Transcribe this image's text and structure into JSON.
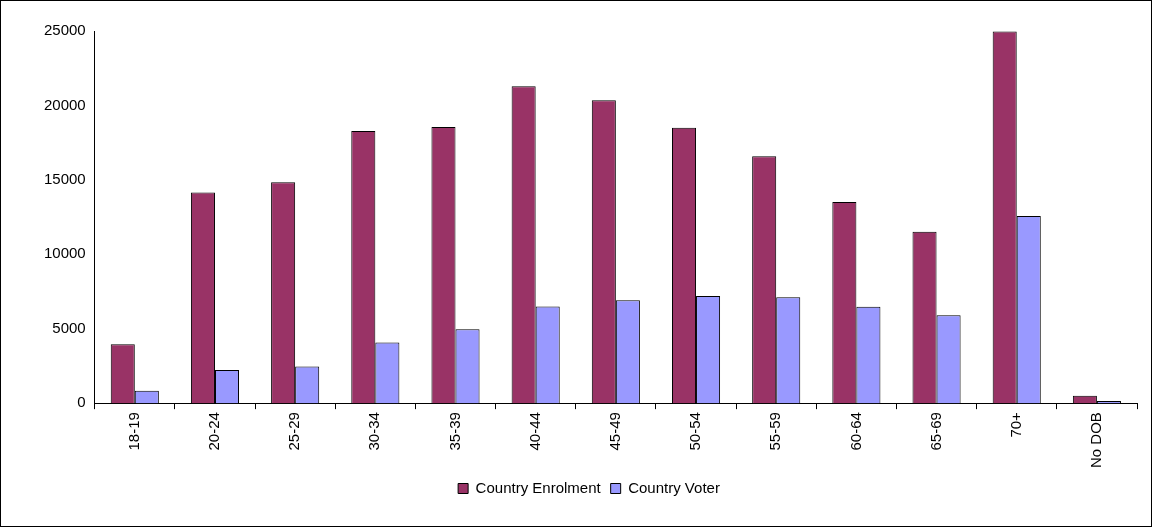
{
  "chart_data": {
    "type": "bar",
    "categories": [
      "18-19",
      "20-24",
      "25-29",
      "30-34",
      "35-39",
      "40-44",
      "45-49",
      "50-54",
      "55-59",
      "60-64",
      "65-69",
      "70+",
      "No DOB"
    ],
    "series": [
      {
        "name": "Country Enrolment",
        "color": "#993366",
        "values": [
          3960,
          14150,
          14840,
          18280,
          18550,
          21290,
          20350,
          18500,
          16590,
          13510,
          11520,
          24970,
          500
        ]
      },
      {
        "name": "Country Voter",
        "color": "#9999ff",
        "values": [
          840,
          2230,
          2460,
          4070,
          4970,
          6500,
          6920,
          7200,
          7120,
          6470,
          5910,
          12580,
          140
        ]
      }
    ],
    "ylim": [
      0,
      25000
    ],
    "yticks": [
      0,
      5000,
      10000,
      15000,
      20000,
      25000
    ],
    "grid": false,
    "legend": "bottom"
  }
}
